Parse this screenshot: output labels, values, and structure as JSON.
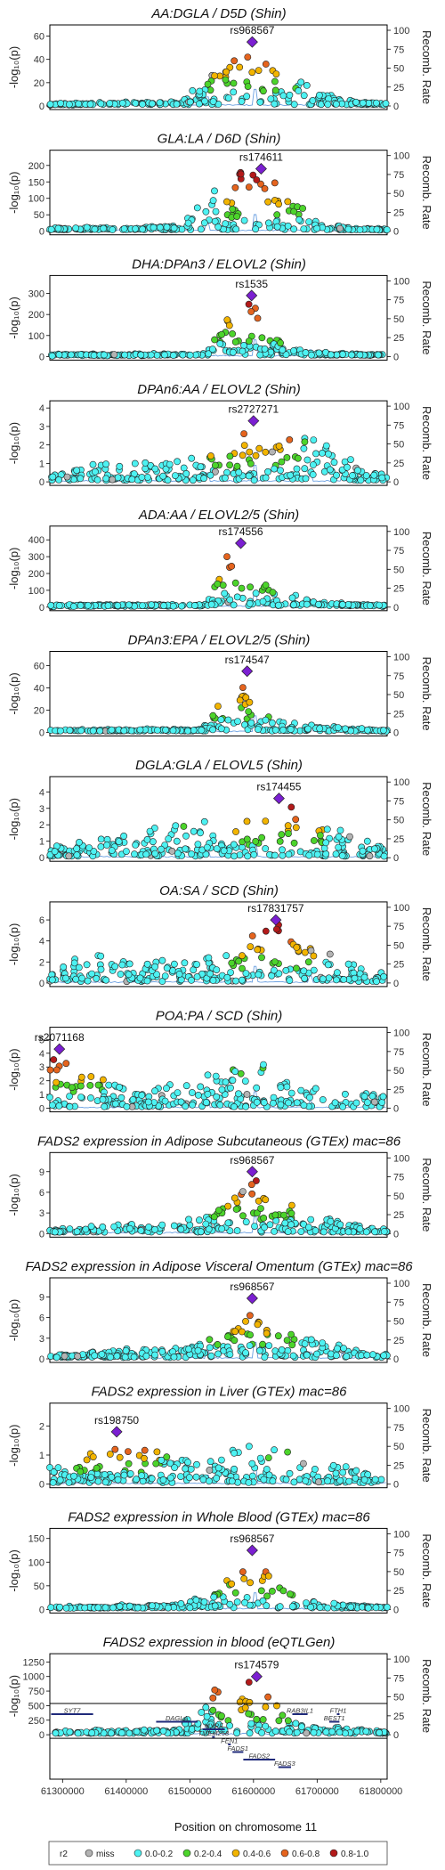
{
  "chart_data": {
    "type": "scatter",
    "layout": "regional association plots (LocusZoom-style), 14 stacked panels with shared x axis",
    "x_axis": {
      "label": "Position on chromosome 11",
      "range": [
        61280000,
        61810000
      ],
      "ticks": [
        61300000,
        61400000,
        61500000,
        61600000,
        61700000,
        61800000
      ],
      "tick_labels": [
        "61300000",
        "61400000",
        "61500000",
        "61600000",
        "61700000",
        "61800000"
      ]
    },
    "right_axis": {
      "label": "Recomb. Rate",
      "range": [
        0,
        100
      ],
      "ticks": [
        0,
        25,
        50,
        75,
        100
      ],
      "tick_labels": [
        "0",
        "25",
        "50",
        "75",
        "100"
      ]
    },
    "y_label": "-log₁₀(p)",
    "panels": [
      {
        "title": "AA:DGLA / D5D (Shin)",
        "ymax": 65,
        "ticks": [
          0,
          20,
          40,
          60
        ],
        "tick_labels": [
          "0",
          "20",
          "40",
          "60"
        ],
        "lead": {
          "snp": "rs968567",
          "x": 61598000,
          "y": 55
        },
        "shape": [
          [
            61280000,
            1
          ],
          [
            61480000,
            4
          ],
          [
            61540000,
            28
          ],
          [
            61575000,
            47
          ],
          [
            61598000,
            55
          ],
          [
            61640000,
            42
          ],
          [
            61700000,
            14
          ],
          [
            61760000,
            3
          ],
          [
            61810000,
            1
          ]
        ]
      },
      {
        "title": "GLA:LA / D6D (Shin)",
        "ymax": 230,
        "ticks": [
          0,
          50,
          100,
          150,
          200
        ],
        "tick_labels": [
          "0",
          "50",
          "100",
          "150",
          "200"
        ],
        "lead": {
          "snp": "rs174611",
          "x": 61612000,
          "y": 190
        },
        "shape": [
          [
            61280000,
            6
          ],
          [
            61480000,
            15
          ],
          [
            61540000,
            130
          ],
          [
            61580000,
            180
          ],
          [
            61612000,
            190
          ],
          [
            61640000,
            150
          ],
          [
            61700000,
            25
          ],
          [
            61760000,
            8
          ],
          [
            61810000,
            5
          ]
        ]
      },
      {
        "title": "DHA:DPAn3 / ELOVL2 (Shin)",
        "ymax": 360,
        "ticks": [
          0,
          100,
          200,
          300
        ],
        "tick_labels": [
          "0",
          "100",
          "200",
          "300"
        ],
        "lead": {
          "snp": "rs1535",
          "x": 61597000,
          "y": 290
        },
        "shape": [
          [
            61280000,
            5
          ],
          [
            61520000,
            10
          ],
          [
            61555000,
            160
          ],
          [
            61575000,
            280
          ],
          [
            61597000,
            290
          ],
          [
            61620000,
            110
          ],
          [
            61680000,
            20
          ],
          [
            61810000,
            4
          ]
        ]
      },
      {
        "title": "DPAn6:AA / ELOVL2 (Shin)",
        "ymax": 4.1,
        "ticks": [
          0,
          1,
          2,
          3,
          4
        ],
        "tick_labels": [
          "0",
          "1",
          "2",
          "3",
          "4"
        ],
        "lead": {
          "snp": "rs2727271",
          "x": 61600000,
          "y": 3.3
        },
        "shape": [
          [
            61280000,
            0.4
          ],
          [
            61360000,
            1.2
          ],
          [
            61420000,
            1.0
          ],
          [
            61520000,
            1.4
          ],
          [
            61600000,
            3.3
          ],
          [
            61660000,
            2.4
          ],
          [
            61700000,
            2.8
          ],
          [
            61760000,
            1.0
          ],
          [
            61810000,
            0.3
          ]
        ]
      },
      {
        "title": "ADA:AA / ELOVL2/5 (Shin)",
        "ymax": 450,
        "ticks": [
          0,
          100,
          200,
          300,
          400
        ],
        "tick_labels": [
          "0",
          "100",
          "200",
          "300",
          "400"
        ],
        "lead": {
          "snp": "rs174556",
          "x": 61580000,
          "y": 380
        },
        "shape": [
          [
            61280000,
            5
          ],
          [
            61520000,
            12
          ],
          [
            61555000,
            300
          ],
          [
            61580000,
            380
          ],
          [
            61600000,
            200
          ],
          [
            61640000,
            100
          ],
          [
            61700000,
            25
          ],
          [
            61810000,
            5
          ]
        ]
      },
      {
        "title": "DPAn3:EPA / ELOVL2/5 (Shin)",
        "ymax": 68,
        "ticks": [
          0,
          20,
          40,
          60
        ],
        "tick_labels": [
          "0",
          "20",
          "40",
          "60"
        ],
        "lead": {
          "snp": "rs174547",
          "x": 61590000,
          "y": 55
        },
        "shape": [
          [
            61280000,
            1
          ],
          [
            61520000,
            3
          ],
          [
            61555000,
            40
          ],
          [
            61590000,
            55
          ],
          [
            61610000,
            20
          ],
          [
            61660000,
            8
          ],
          [
            61810000,
            1
          ]
        ]
      },
      {
        "title": "DGLA:GLA / ELOVL5 (Shin)",
        "ymax": 4.6,
        "ticks": [
          0,
          1,
          2,
          3,
          4
        ],
        "tick_labels": [
          "0",
          "1",
          "2",
          "3",
          "4"
        ],
        "lead": {
          "snp": "rs174455",
          "x": 61640000,
          "y": 3.6
        },
        "shape": [
          [
            61280000,
            0.6
          ],
          [
            61400000,
            1.5
          ],
          [
            61500000,
            2.2
          ],
          [
            61560000,
            3.0
          ],
          [
            61600000,
            2.8
          ],
          [
            61640000,
            3.6
          ],
          [
            61700000,
            2.3
          ],
          [
            61780000,
            1.2
          ],
          [
            61810000,
            0.5
          ]
        ]
      },
      {
        "title": "OA:SA / SCD (Shin)",
        "ymax": 7.2,
        "ticks": [
          0,
          2,
          4,
          6
        ],
        "tick_labels": [
          "0",
          "2",
          "4",
          "6"
        ],
        "lead": {
          "snp": "rs17831757",
          "x": 61635000,
          "y": 6.0
        },
        "shape": [
          [
            61280000,
            1.0
          ],
          [
            61330000,
            3.5
          ],
          [
            61420000,
            2.0
          ],
          [
            61560000,
            3.0
          ],
          [
            61610000,
            5.0
          ],
          [
            61635000,
            6.0
          ],
          [
            61700000,
            3.0
          ],
          [
            61810000,
            1.0
          ]
        ]
      },
      {
        "title": "POA:PA / SCD (Shin)",
        "ymax": 5.5,
        "ticks": [
          0,
          1,
          2,
          3,
          4,
          5
        ],
        "tick_labels": [
          "0",
          "1",
          "2",
          "3",
          "4",
          "5"
        ],
        "lead": {
          "snp": "rs2071168",
          "x": 61295000,
          "y": 4.3
        },
        "shape": [
          [
            61280000,
            4.0
          ],
          [
            61320000,
            3.5
          ],
          [
            61400000,
            1.5
          ],
          [
            61500000,
            2.0
          ],
          [
            61600000,
            3.5
          ],
          [
            61700000,
            2.0
          ],
          [
            61810000,
            0.8
          ]
        ]
      },
      {
        "title": "FADS2 expression in Adipose Subcutaneous (GTEx) mac=86",
        "ymax": 11,
        "ticks": [
          0,
          3,
          6,
          9
        ],
        "tick_labels": [
          "0",
          "3",
          "6",
          "9"
        ],
        "lead": {
          "snp": "rs968567",
          "x": 61598000,
          "y": 9.0
        },
        "shape": [
          [
            61280000,
            0.5
          ],
          [
            61480000,
            1.8
          ],
          [
            61550000,
            4.0
          ],
          [
            61598000,
            9.0
          ],
          [
            61640000,
            5.0
          ],
          [
            61700000,
            2.5
          ],
          [
            61810000,
            0.5
          ]
        ]
      },
      {
        "title": "FADS2 expression in Adipose Visceral Omentum (GTEx) mac=86",
        "ymax": 11,
        "ticks": [
          0,
          3,
          6,
          9
        ],
        "tick_labels": [
          "0",
          "3",
          "6",
          "9"
        ],
        "lead": {
          "snp": "rs968567",
          "x": 61598000,
          "y": 8.8
        },
        "shape": [
          [
            61280000,
            0.5
          ],
          [
            61480000,
            1.8
          ],
          [
            61550000,
            3.5
          ],
          [
            61598000,
            8.8
          ],
          [
            61640000,
            5.0
          ],
          [
            61700000,
            2.5
          ],
          [
            61810000,
            0.5
          ]
        ]
      },
      {
        "title": "FADS2 expression in Liver (GTEx) mac=86",
        "ymax": 2.6,
        "ticks": [
          0,
          1,
          2
        ],
        "tick_labels": [
          "0",
          "1",
          "2"
        ],
        "lead": {
          "snp": "rs198750",
          "x": 61385000,
          "y": 1.8
        },
        "shape": [
          [
            61280000,
            0.6
          ],
          [
            61385000,
            1.8
          ],
          [
            61480000,
            0.8
          ],
          [
            61600000,
            1.5
          ],
          [
            61700000,
            0.8
          ],
          [
            61810000,
            0.4
          ]
        ]
      },
      {
        "title": "FADS2 expression in Whole Blood (GTEx) mac=86",
        "ymax": 160,
        "ticks": [
          0,
          50,
          100,
          150
        ],
        "tick_labels": [
          "0",
          "50",
          "100",
          "150"
        ],
        "lead": {
          "snp": "rs968567",
          "x": 61598000,
          "y": 125
        },
        "shape": [
          [
            61280000,
            3
          ],
          [
            61480000,
            10
          ],
          [
            61550000,
            50
          ],
          [
            61598000,
            125
          ],
          [
            61640000,
            60
          ],
          [
            61700000,
            15
          ],
          [
            61810000,
            3
          ]
        ]
      },
      {
        "title": "FADS2 expression in blood (eQTLGen)",
        "ymax": 1300,
        "ticks": [
          0,
          250,
          500,
          750,
          1000,
          1250
        ],
        "tick_labels": [
          "0",
          "250",
          "500",
          "750",
          "1000",
          "1250"
        ],
        "lead": {
          "snp": "rs174579",
          "x": 61605000,
          "y": 1000
        },
        "shape": [
          [
            61280000,
            40
          ],
          [
            61480000,
            100
          ],
          [
            61540000,
            900
          ],
          [
            61580000,
            980
          ],
          [
            61605000,
            1000
          ],
          [
            61630000,
            700
          ],
          [
            61680000,
            200
          ],
          [
            61810000,
            30
          ]
        ]
      }
    ],
    "genes": [
      {
        "name": "SYT7",
        "start": 61282000,
        "end": 61348000
      },
      {
        "name": "DAGLA",
        "start": 61447000,
        "end": 61512000
      },
      {
        "name": "MYRF",
        "start": 61520000,
        "end": 61555000
      },
      {
        "name": "TMEM258",
        "start": 61535000,
        "end": 61537000
      },
      {
        "name": "FEN1",
        "start": 61560000,
        "end": 61564000
      },
      {
        "name": "FADS1",
        "start": 61567000,
        "end": 61584000
      },
      {
        "name": "FADS2",
        "start": 61584000,
        "end": 61634000
      },
      {
        "name": "FADS3",
        "start": 61639000,
        "end": 61659000
      },
      {
        "name": "RAB3IL1",
        "start": 61661000,
        "end": 61685000
      },
      {
        "name": "BEST1",
        "start": 61719000,
        "end": 61735000
      },
      {
        "name": "FTH1",
        "start": 61731000,
        "end": 61735000
      }
    ],
    "legend": {
      "title": "r2",
      "placement": "bottom",
      "items": [
        {
          "label": "miss",
          "color": "#b3b3b3"
        },
        {
          "label": "0.0-0.2",
          "color": "#4df2f2"
        },
        {
          "label": "0.2-0.4",
          "color": "#4cd42b"
        },
        {
          "label": "0.4-0.6",
          "color": "#f2b400"
        },
        {
          "label": "0.6-0.8",
          "color": "#e5641e"
        },
        {
          "label": "0.8-1.0",
          "color": "#b31a1a"
        }
      ]
    },
    "lead_color": "#7b1fd1",
    "recomb_color": "#6a9fe0"
  }
}
